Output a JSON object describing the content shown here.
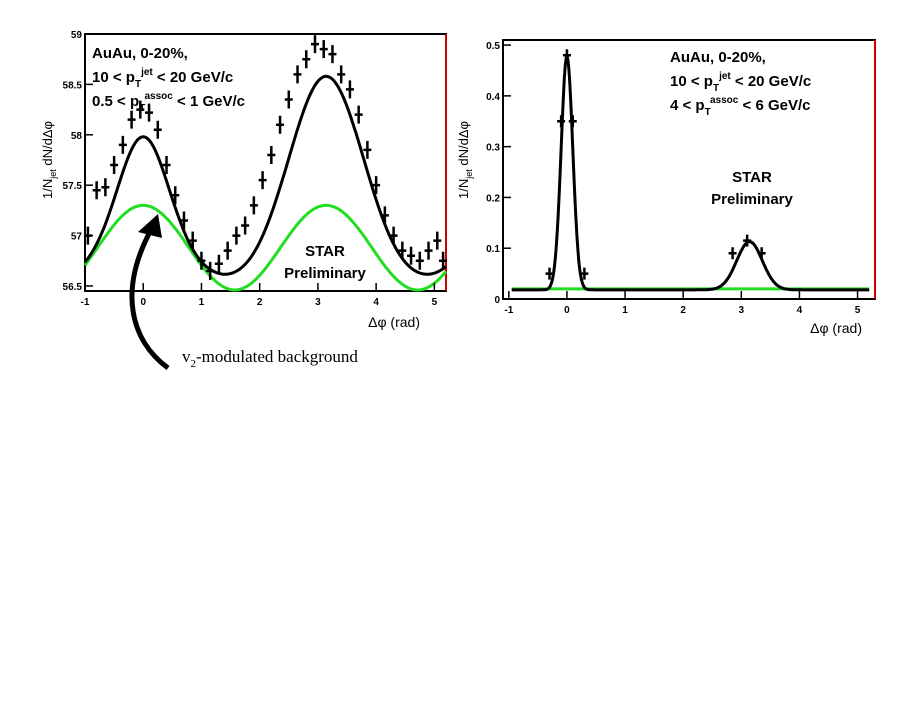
{
  "chart_data": [
    {
      "type": "scatter",
      "xlabel": "Δφ (rad)",
      "ylabel": "1/Njet dN/dΔφ",
      "ylabel_parts": {
        "a": "1/N",
        "sub": "jet",
        "b": " dN/dΔφ"
      },
      "xlim": [
        -1,
        5.2
      ],
      "ylim": [
        56.45,
        59.0
      ],
      "xticks": [
        -1,
        0,
        1,
        2,
        3,
        4,
        5
      ],
      "yticks": [
        56.5,
        57,
        57.5,
        58,
        58.5,
        59
      ],
      "annotations": {
        "line1": "AuAu, 0-20%,",
        "line2": {
          "a": "10 < p",
          "sub": "T",
          "sup": "jet",
          "b": " < 20 GeV/c"
        },
        "line3": {
          "a": "0.5 < p",
          "sub": "T",
          "sup": "assoc",
          "b": " < 1 GeV/c"
        },
        "star1": "STAR",
        "star2": "Preliminary",
        "arrow_label": {
          "a": "v",
          "sub": "2",
          "b": "-modulated background"
        }
      },
      "colors": {
        "data": "#000000",
        "background": "#22dd22",
        "frame_right": "#cc0000"
      },
      "series": [
        {
          "x": [
            -0.95,
            -0.8,
            -0.65,
            -0.5,
            -0.35,
            -0.2,
            -0.05,
            0.1,
            0.25,
            0.4,
            0.55,
            0.7,
            0.85,
            1.0,
            1.15,
            1.3,
            1.45,
            1.6,
            1.75,
            1.9,
            2.05,
            2.2,
            2.35,
            2.5,
            2.65,
            2.8,
            2.95,
            3.1,
            3.25,
            3.4,
            3.55,
            3.7,
            3.85,
            4.0,
            4.15,
            4.3,
            4.45,
            4.6,
            4.75,
            4.9,
            5.05,
            5.15
          ],
          "y": [
            57.0,
            57.45,
            57.48,
            57.7,
            57.9,
            58.15,
            58.25,
            58.22,
            58.05,
            57.7,
            57.4,
            57.15,
            56.95,
            56.75,
            56.65,
            56.72,
            56.85,
            57.0,
            57.1,
            57.3,
            57.55,
            57.8,
            58.1,
            58.35,
            58.6,
            58.75,
            58.9,
            58.85,
            58.8,
            58.6,
            58.45,
            58.2,
            57.85,
            57.5,
            57.2,
            57.0,
            56.85,
            56.8,
            56.75,
            56.85,
            56.95,
            56.75
          ]
        }
      ],
      "fit_curve": {
        "base": 57.1,
        "v2_amp": 0.18,
        "near_amp": 1.05,
        "near_sigma": 0.42,
        "away_amp": 1.65,
        "away_sigma": 0.62
      },
      "background_curve": {
        "base": 56.88,
        "v2_amp": 0.42
      }
    },
    {
      "type": "line",
      "xlabel": "Δφ (rad)",
      "ylabel": "1/Njet dN/dΔφ",
      "ylabel_parts": {
        "a": "1/N",
        "sub": "jet",
        "b": " dN/dΔφ"
      },
      "xlim": [
        -1.1,
        5.3
      ],
      "ylim": [
        0,
        0.51
      ],
      "xticks": [
        -1,
        0,
        1,
        2,
        3,
        4,
        5
      ],
      "yticks": [
        0,
        0.1,
        0.2,
        0.3,
        0.4,
        0.5
      ],
      "ytick_labels": [
        "0",
        "0.1",
        "0.2",
        "0.3",
        "0.4",
        "0.5"
      ],
      "annotations": {
        "line1": "AuAu, 0-20%,",
        "line2": {
          "a": "10 < p",
          "sub": "T",
          "sup": "jet",
          "b": " < 20 GeV/c"
        },
        "line3": {
          "a": "4 < p",
          "sub": "T",
          "sup": "assoc",
          "b": " < 6 GeV/c"
        },
        "star1": "STAR",
        "star2": "Preliminary"
      },
      "colors": {
        "data": "#000000",
        "background": "#22dd22",
        "frame_right": "#cc0000"
      },
      "series": [
        {
          "x": [
            -0.3,
            -0.1,
            0.0,
            0.1,
            0.3,
            2.85,
            3.1,
            3.35
          ],
          "y": [
            0.05,
            0.35,
            0.48,
            0.35,
            0.05,
            0.09,
            0.115,
            0.09
          ]
        }
      ],
      "fit_curve": {
        "base": 0.018,
        "near_amp": 0.46,
        "near_sigma": 0.1,
        "away_amp": 0.095,
        "away_sigma": 0.22
      },
      "background_level": 0.02
    }
  ]
}
